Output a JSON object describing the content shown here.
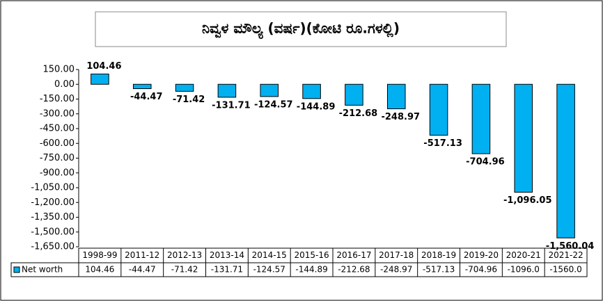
{
  "chart_data": {
    "type": "bar",
    "title": "ನಿವ್ವಳ ಮೌಲ್ಯ (ವರ್ಷ)(ಕೋಟಿ ರೂ.ಗಳಲ್ಲಿ)",
    "categories": [
      "1998-99",
      "2011-12",
      "2012-13",
      "2013-14",
      "2014-15",
      "2015-16",
      "2016-17",
      "2017-18",
      "2018-19",
      "2019-20",
      "2020-21",
      "2021-22"
    ],
    "series": [
      {
        "name": "Net worth",
        "color": "#00b0f0",
        "values": [
          104.46,
          -44.47,
          -71.42,
          -131.71,
          -124.57,
          -144.89,
          -212.68,
          -248.97,
          -517.13,
          -704.96,
          -1096.05,
          -1560.04
        ],
        "value_labels": [
          "104.46",
          "-44.47",
          "-71.42",
          "-131.71",
          "-124.57",
          "-144.89",
          "-212.68",
          "-248.97",
          "-517.13",
          "-704.96",
          "-1,096.05",
          "-1,560.04"
        ],
        "table_labels": [
          "104.46",
          "-44.47",
          "-71.42",
          "-131.71",
          "-124.57",
          "-144.89",
          "-212.68",
          "-248.97",
          "-517.13",
          "-704.96",
          "-1096.0",
          "-1560.0"
        ]
      }
    ],
    "ylim": [
      -1650,
      150
    ],
    "yticks": [
      {
        "value": 150,
        "label": "150.00"
      },
      {
        "value": 0,
        "label": "0.00"
      },
      {
        "value": -150,
        "label": "-150.00"
      },
      {
        "value": -300,
        "label": "-300.00"
      },
      {
        "value": -450,
        "label": "-450.00"
      },
      {
        "value": -600,
        "label": "-600.00"
      },
      {
        "value": -750,
        "label": "-750.00"
      },
      {
        "value": -900,
        "label": "-900.00"
      },
      {
        "value": -1050,
        "label": "-1,050.00"
      },
      {
        "value": -1200,
        "label": "-1,200.00"
      },
      {
        "value": -1350,
        "label": "-1,350.00"
      },
      {
        "value": -1500,
        "label": "-1,500.00"
      },
      {
        "value": -1650,
        "label": "-1,650.00"
      }
    ]
  }
}
